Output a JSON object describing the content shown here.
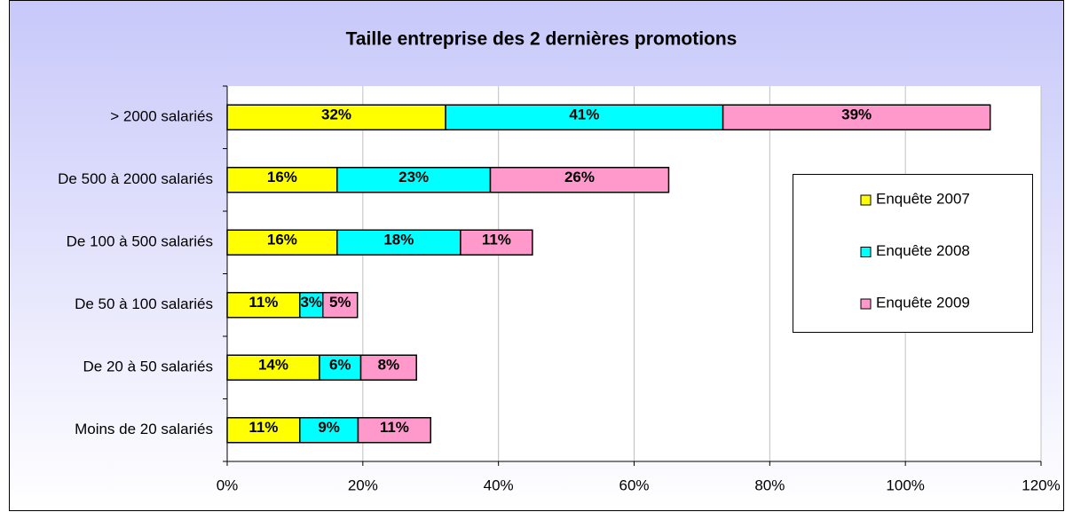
{
  "chart_data": {
    "type": "stacked-bar",
    "orientation": "horizontal",
    "title": "Taille entreprise des 2 dernières promotions",
    "categories": [
      "> 2000 salariés",
      "De 500 à 2000 salariés",
      "De 100 à 500 salariés",
      "De 50 à 100 salariés",
      "De 20 à 50 salariés",
      "Moins de 20 salariés"
    ],
    "series": [
      {
        "name": "Enquête 2007",
        "color": "#ffff00",
        "values": [
          32.2,
          16.2,
          16.2,
          10.7,
          13.6,
          10.7
        ],
        "value_labels": [
          "32%",
          "16%",
          "16%",
          "11%",
          "14%",
          "11%"
        ]
      },
      {
        "name": "Enquête 2008",
        "color": "#00ffff",
        "values": [
          40.9,
          22.6,
          18.2,
          3.4,
          6.1,
          8.6
        ],
        "value_labels": [
          "41%",
          "23%",
          "18%",
          "3%",
          "6%",
          "9%"
        ]
      },
      {
        "name": "Enquête 2009",
        "color": "#ff99cc",
        "values": [
          39.4,
          26.3,
          10.6,
          5.1,
          8.2,
          10.7
        ],
        "value_labels": [
          "39%",
          "26%",
          "11%",
          "5%",
          "8%",
          "11%"
        ]
      }
    ],
    "xlim": [
      0,
      120
    ],
    "xticks": [
      {
        "value": 0,
        "label": "0%"
      },
      {
        "value": 20,
        "label": "20%"
      },
      {
        "value": 40,
        "label": "40%"
      },
      {
        "value": 60,
        "label": "60%"
      },
      {
        "value": 80,
        "label": "80%"
      },
      {
        "value": 100,
        "label": "100%"
      },
      {
        "value": 120,
        "label": "120%"
      }
    ],
    "grid": true,
    "legend": "right"
  }
}
